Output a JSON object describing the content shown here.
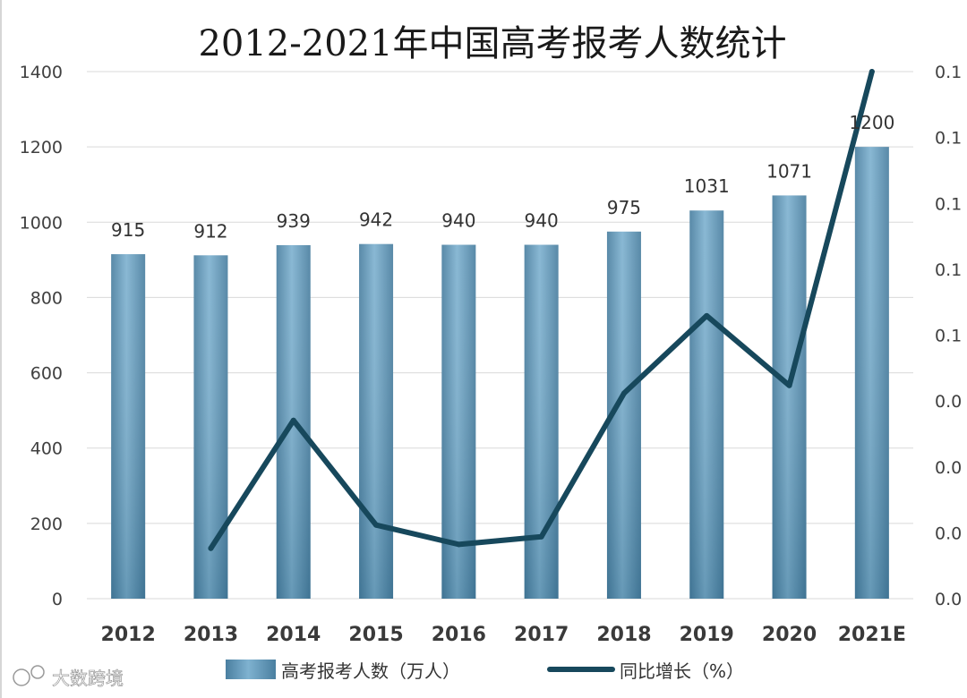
{
  "chart_data": {
    "type": "bar",
    "title": "2012-2021年中国高考报考人数统计",
    "categories": [
      "2012",
      "2013",
      "2014",
      "2015",
      "2016",
      "2017",
      "2018",
      "2019",
      "2020",
      "2021E"
    ],
    "series": [
      {
        "name": "高考报考人数（万人）",
        "type": "bar",
        "axis": "left",
        "values": [
          915,
          912,
          939,
          942,
          940,
          940,
          975,
          1031,
          1071,
          1200
        ],
        "color": "#5b95b8"
      },
      {
        "name": "同比增长（%）",
        "type": "line",
        "axis": "right",
        "values": [
          null,
          -0.003,
          0.03,
          0.003,
          -0.002,
          0.0,
          0.037,
          0.057,
          0.039,
          0.12
        ],
        "color": "#17485c"
      }
    ],
    "y_left": {
      "ylim": [
        0,
        1400
      ],
      "ticks": [
        "0",
        "200",
        "400",
        "600",
        "800",
        "1000",
        "1200",
        "1400"
      ]
    },
    "y_right": {
      "ylim": [
        -0.016,
        0.12
      ],
      "ticks": [
        "0.0",
        "0.0",
        "0.0",
        "0.0",
        "0.1",
        "0.1",
        "0.1",
        "0.1",
        "0.1"
      ]
    },
    "grid": true,
    "legend_position": "bottom"
  },
  "watermark": {
    "text": "大数跨境",
    "icon": "logo-icon"
  }
}
